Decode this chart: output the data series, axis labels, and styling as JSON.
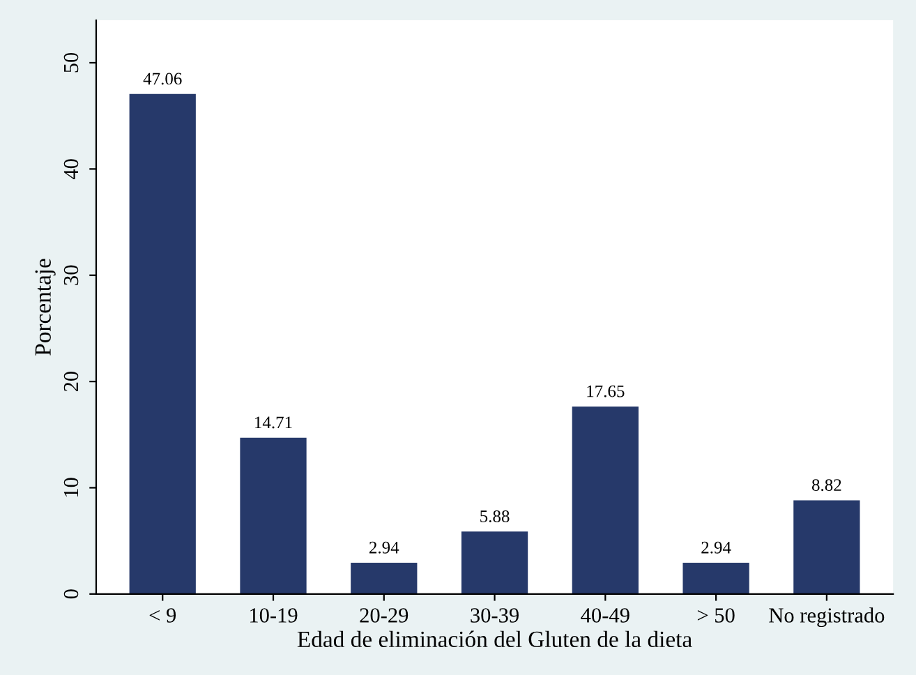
{
  "chart_data": {
    "type": "bar",
    "xlabel": "Edad de eliminación del Gluten de la dieta",
    "ylabel": "Porcentaje",
    "categories": [
      "< 9",
      "10-19",
      "20-29",
      "30-39",
      "40-49",
      "> 50",
      "No registrado"
    ],
    "values": [
      47.06,
      14.71,
      2.94,
      5.88,
      17.65,
      2.94,
      8.82
    ],
    "color": "#26396a",
    "data_labels": true,
    "ylim": [
      0,
      54
    ],
    "yticks": [
      0,
      10,
      20,
      30,
      40,
      50
    ],
    "grid": false,
    "legend": false
  }
}
